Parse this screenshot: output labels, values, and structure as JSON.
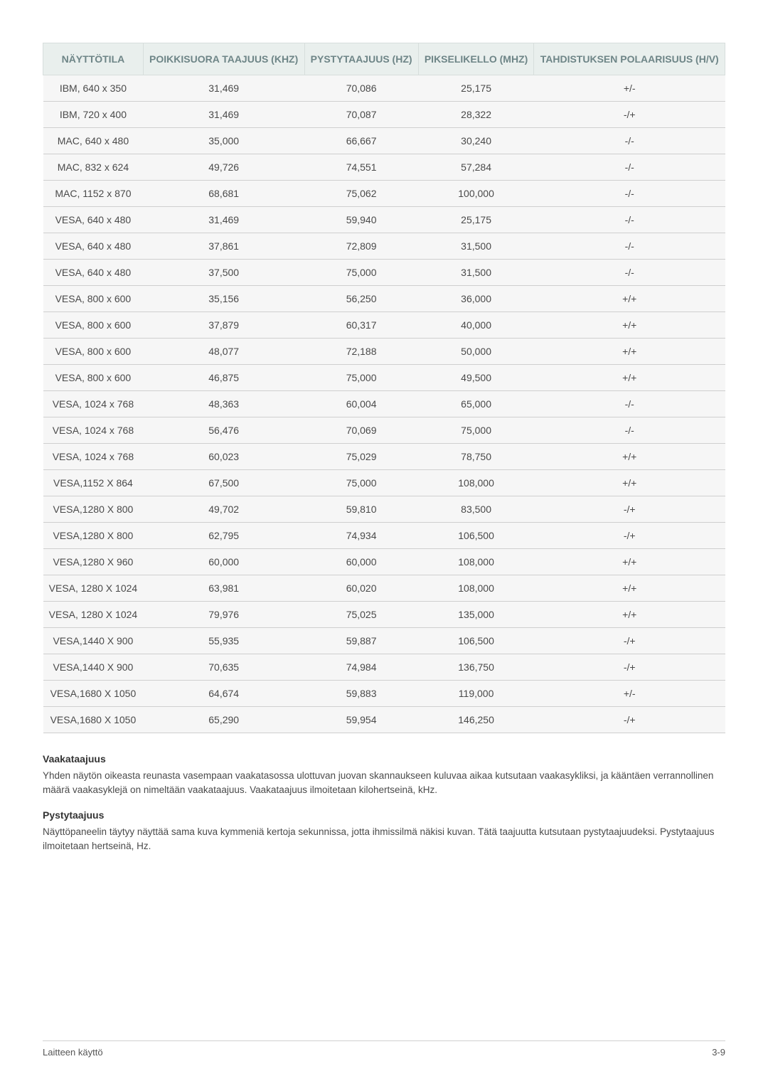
{
  "table": {
    "columns": [
      "NÄYTTÖTILA",
      "POIKKISUORA TAAJUUS (KHZ)",
      "PYSTYTAAJUUS (HZ)",
      "PIKSELIKELLO (MHZ)",
      "TAHDISTUKSEN POLAARISUUS (H/V)"
    ],
    "header_bg": "#e9efed",
    "header_color": "#6e8587",
    "row_bg": "#f6f6f6",
    "border_color": "#cfcfcf",
    "font_size": 14,
    "rows": [
      [
        "IBM, 640 x 350",
        "31,469",
        "70,086",
        "25,175",
        "+/-"
      ],
      [
        "IBM, 720 x 400",
        "31,469",
        "70,087",
        "28,322",
        "-/+"
      ],
      [
        "MAC, 640 x 480",
        "35,000",
        "66,667",
        "30,240",
        "-/-"
      ],
      [
        "MAC, 832 x 624",
        "49,726",
        "74,551",
        "57,284",
        "-/-"
      ],
      [
        "MAC, 1152 x 870",
        "68,681",
        "75,062",
        "100,000",
        "-/-"
      ],
      [
        "VESA, 640 x 480",
        "31,469",
        "59,940",
        "25,175",
        "-/-"
      ],
      [
        "VESA, 640 x 480",
        "37,861",
        "72,809",
        "31,500",
        "-/-"
      ],
      [
        "VESA, 640 x 480",
        "37,500",
        "75,000",
        "31,500",
        "-/-"
      ],
      [
        "VESA, 800 x 600",
        "35,156",
        "56,250",
        "36,000",
        "+/+"
      ],
      [
        "VESA, 800 x 600",
        "37,879",
        "60,317",
        "40,000",
        "+/+"
      ],
      [
        "VESA, 800 x 600",
        "48,077",
        "72,188",
        "50,000",
        "+/+"
      ],
      [
        "VESA, 800 x 600",
        "46,875",
        "75,000",
        "49,500",
        "+/+"
      ],
      [
        "VESA, 1024 x 768",
        "48,363",
        "60,004",
        "65,000",
        "-/-"
      ],
      [
        "VESA, 1024 x 768",
        "56,476",
        "70,069",
        "75,000",
        "-/-"
      ],
      [
        "VESA, 1024 x 768",
        "60,023",
        "75,029",
        "78,750",
        "+/+"
      ],
      [
        "VESA,1152 X 864",
        "67,500",
        "75,000",
        "108,000",
        "+/+"
      ],
      [
        "VESA,1280 X 800",
        "49,702",
        "59,810",
        "83,500",
        "-/+"
      ],
      [
        "VESA,1280 X 800",
        "62,795",
        "74,934",
        "106,500",
        "-/+"
      ],
      [
        "VESA,1280 X 960",
        "60,000",
        "60,000",
        "108,000",
        "+/+"
      ],
      [
        "VESA, 1280 X 1024",
        "63,981",
        "60,020",
        "108,000",
        "+/+"
      ],
      [
        "VESA, 1280 X 1024",
        "79,976",
        "75,025",
        "135,000",
        "+/+"
      ],
      [
        "VESA,1440 X 900",
        "55,935",
        "59,887",
        "106,500",
        "-/+"
      ],
      [
        "VESA,1440 X 900",
        "70,635",
        "74,984",
        "136,750",
        "-/+"
      ],
      [
        "VESA,1680 X 1050",
        "64,674",
        "59,883",
        "119,000",
        "+/-"
      ],
      [
        "VESA,1680 X 1050",
        "65,290",
        "59,954",
        "146,250",
        "-/+"
      ]
    ]
  },
  "sections": [
    {
      "title": "Vaakataajuus",
      "body": "Yhden näytön oikeasta reunasta vasempaan vaakatasossa ulottuvan juovan skannaukseen kuluvaa aikaa kutsutaan vaakasykliksi, ja kääntäen verrannollinen määrä vaakasyklejä on nimeltään vaakataajuus. Vaakataajuus ilmoitetaan kilohertseinä, kHz."
    },
    {
      "title": "Pystytaajuus",
      "body": "Näyttöpaneelin täytyy näyttää sama kuva kymmeniä kertoja sekunnissa, jotta ihmissilmä näkisi kuvan. Tätä taajuutta kutsutaan pystytaajuudeksi. Pystytaajuus ilmoitetaan hertseinä, Hz."
    }
  ],
  "footer": {
    "left": "Laitteen käyttö",
    "right": "3-9"
  }
}
